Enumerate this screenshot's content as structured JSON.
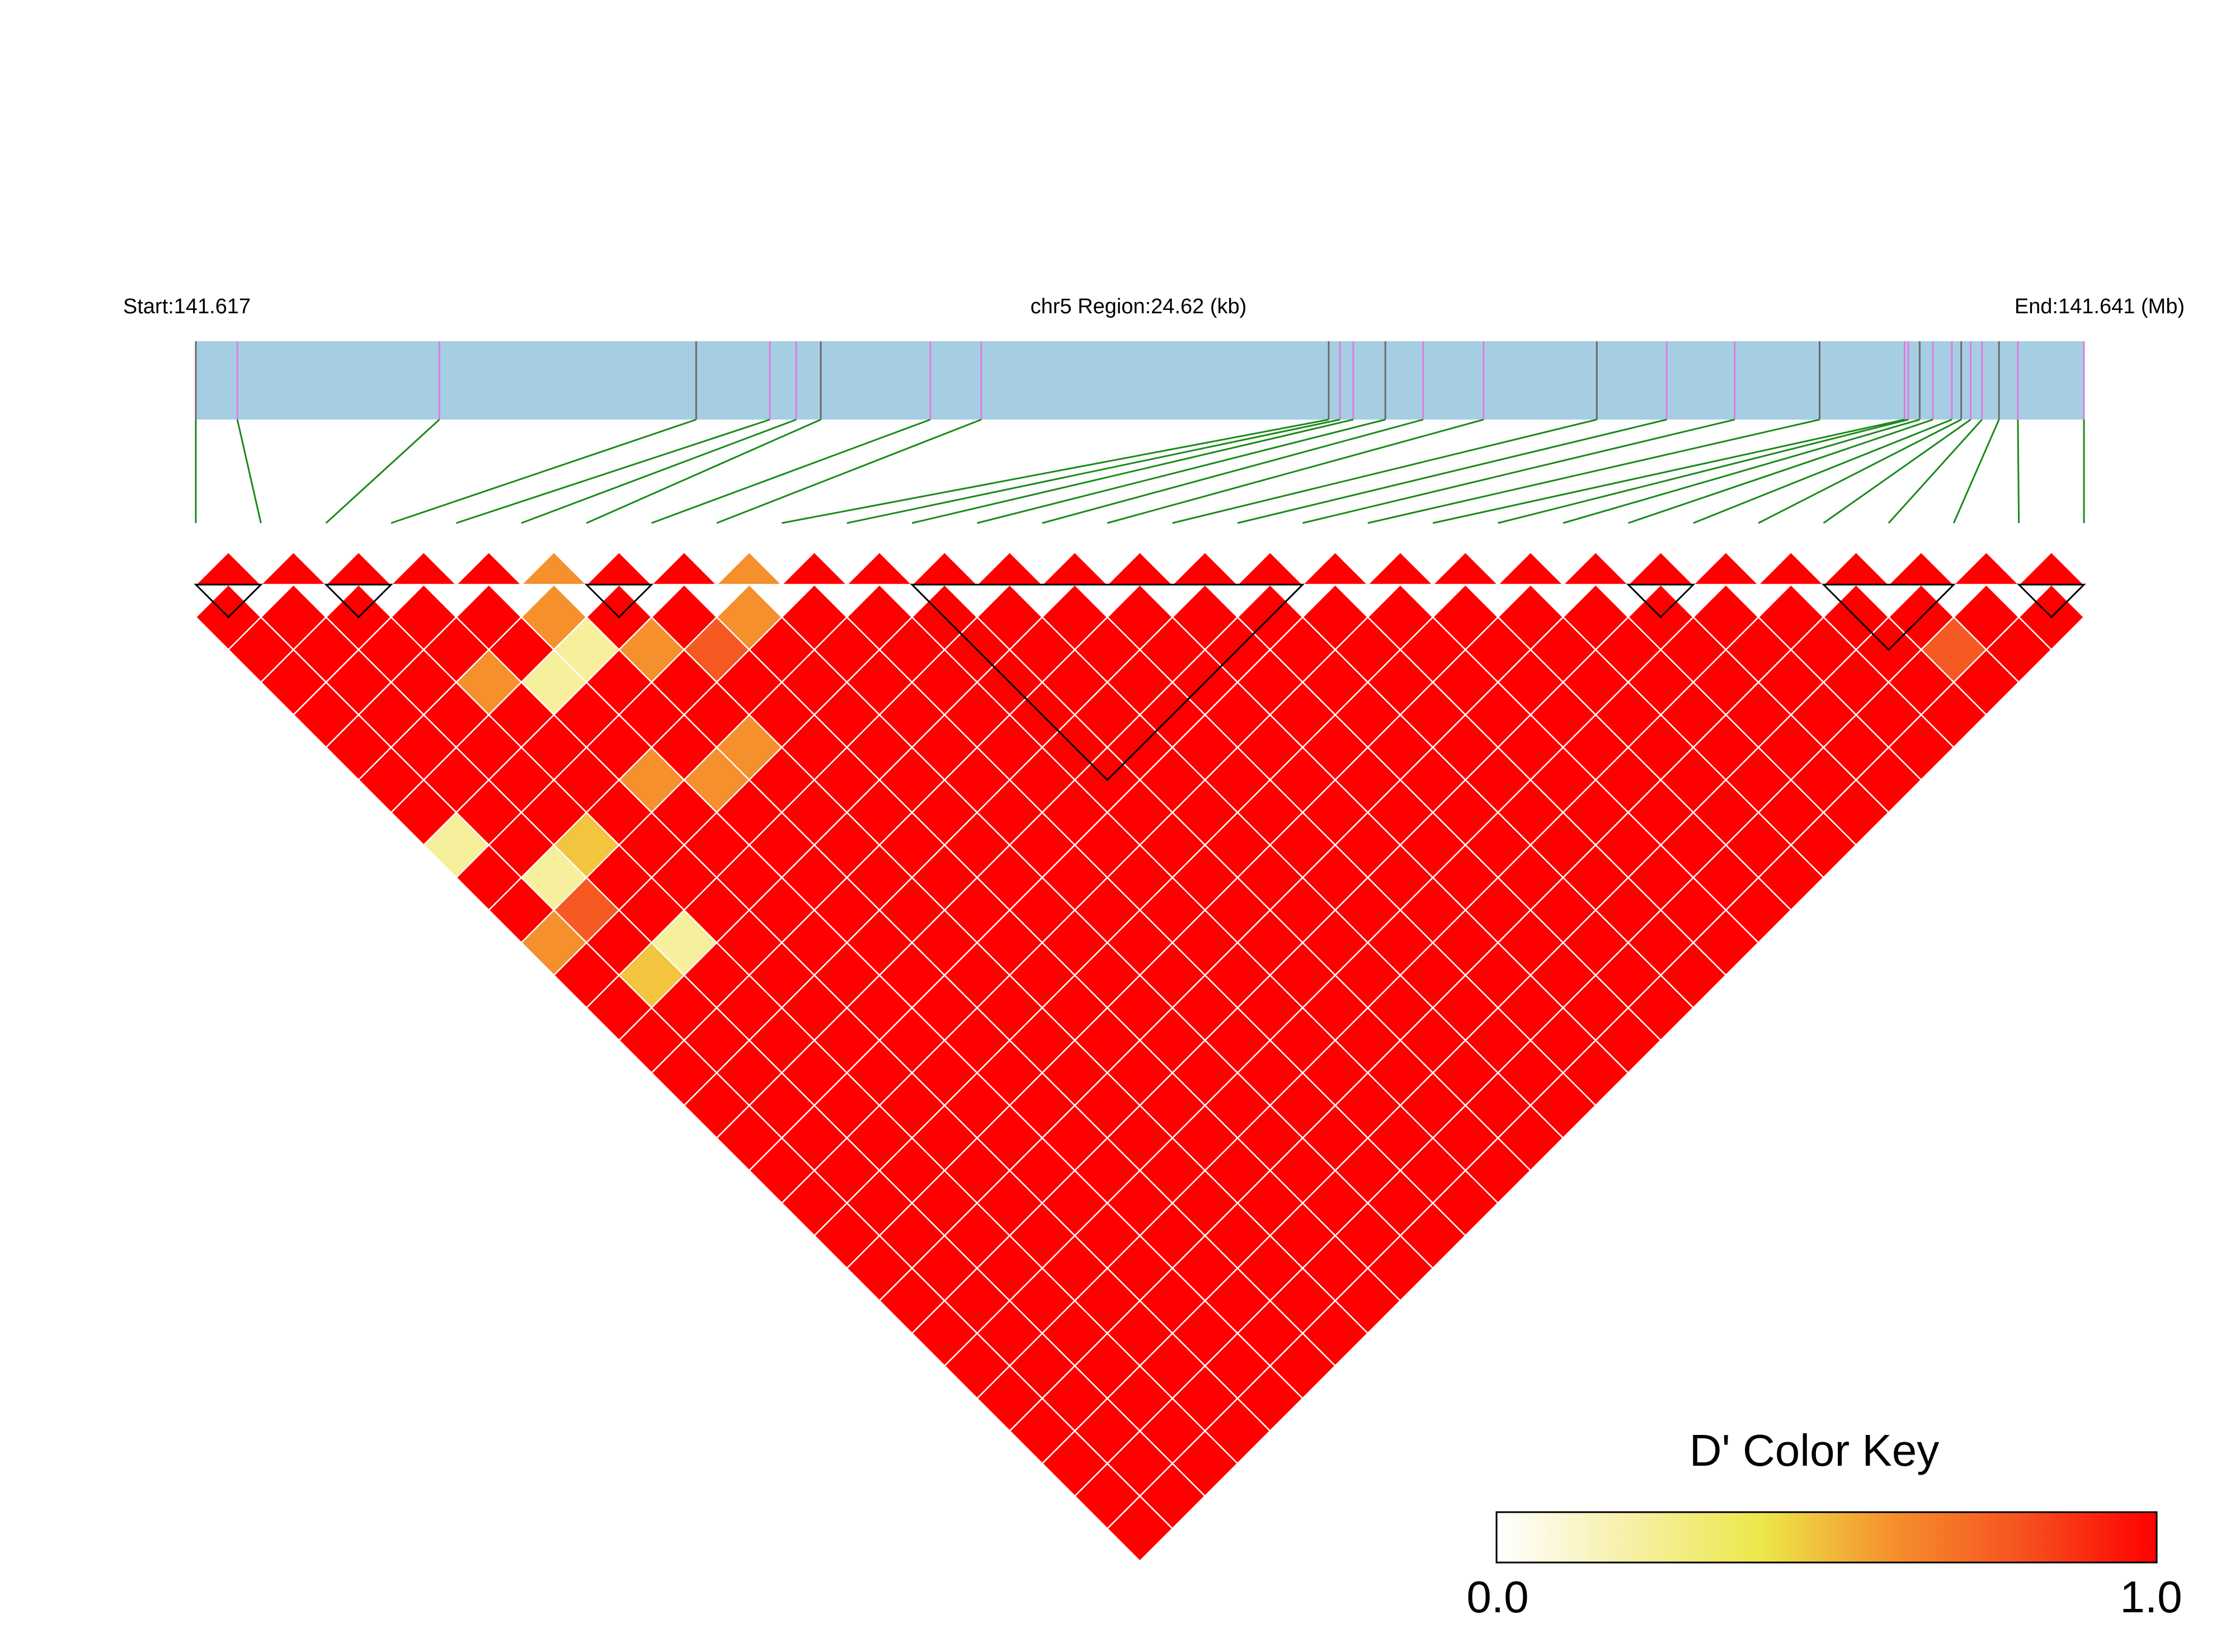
{
  "chart_data": {
    "type": "heatmap",
    "title": "",
    "header": {
      "start_label": "Start:141.617",
      "region_label": "chr5 Region:24.62 (kb)",
      "end_label": "End:141.641 (Mb)"
    },
    "region_start_mb": 141.617,
    "region_end_mb": 141.641,
    "n_snps": 30,
    "snp_relative_positions": [
      0,
      0.022,
      0.129,
      0.265,
      0.304,
      0.318,
      0.331,
      0.389,
      0.416,
      0.6,
      0.606,
      0.613,
      0.63,
      0.65,
      0.682,
      0.742,
      0.779,
      0.815,
      0.86,
      0.905,
      0.907,
      0.913,
      0.92,
      0.93,
      0.935,
      0.94,
      0.946,
      0.955,
      0.965,
      1
    ],
    "gene_track_color": "#a6cee3",
    "connector_color": "#1a8a1a",
    "cell_palette": {
      "0": "#ffffff",
      "1": "#fbf8d8",
      "2": "#f6ef9c",
      "3": "#efe85a",
      "4": "#f3c43e",
      "5": "#f5902d",
      "6": "#f65a22",
      "7": "#ff0000"
    },
    "ld_rows": [
      "77777577577777777777777777777",
      "7777725677777777777777777767",
      "777527777777777777777777777",
      "77777777777777777777777777",
      "7777775777777777777777777",
      "777755777777777777777777",
      "77777777777777777777777",
      "2747777777777777777777",
      "727777777777777777777",
      "76777777777777777777",
      "5727777777777777777",
      "747777777777777777",
      "77777777777777777",
      "7777777777777777",
      "777777777777777",
      "77777777777777",
      "7777777777777",
      "777777777777",
      "77777777777",
      "7777777777",
      "777777777",
      "77777777",
      "7777777",
      "777777",
      "77777",
      "7777",
      "777",
      "77",
      "7"
    ],
    "hap_blocks": [
      [
        0,
        1
      ],
      [
        2,
        3
      ],
      [
        6,
        7
      ],
      [
        11,
        17
      ],
      [
        22,
        23
      ],
      [
        25,
        27
      ],
      [
        28,
        29
      ]
    ],
    "color_key": {
      "title": "D' Color Key",
      "min_label": "0.0",
      "max_label": "1.0",
      "min": 0.0,
      "max": 1.0,
      "stops": [
        "#ffffff",
        "#f6f0a8",
        "#ece84a",
        "#f5902d",
        "#f6501f",
        "#ff0000"
      ]
    }
  }
}
